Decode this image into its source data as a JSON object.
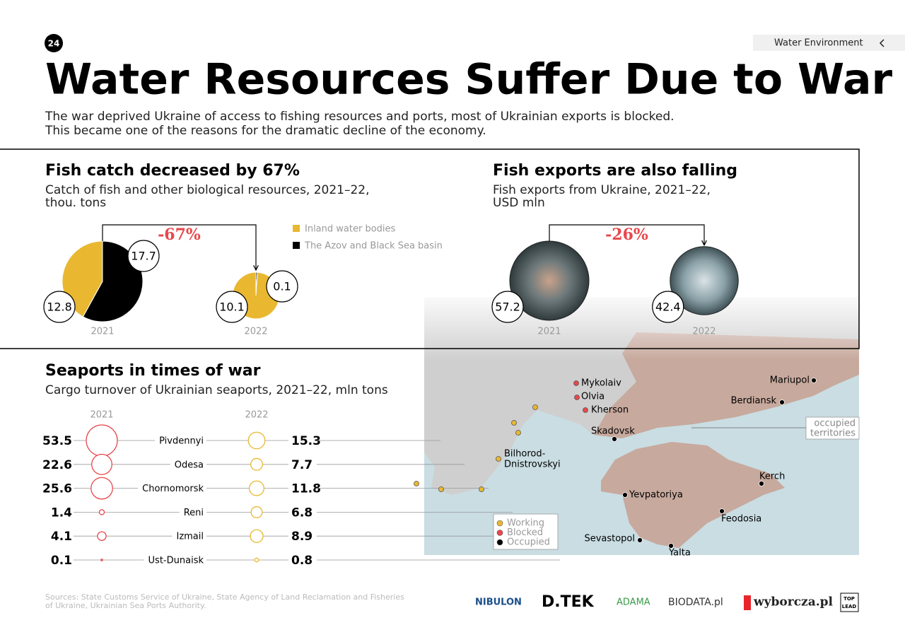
{
  "page_number": "24",
  "section": "Water Environment",
  "title": "Water Resources Suffer Due to War",
  "intro": [
    "The war deprived Ukraine of access to fishing resources and ports, most of Ukrainian exports is blocked.",
    "This became one of the reasons for the dramatic decline of the economy."
  ],
  "chart_data": [
    {
      "type": "pie",
      "title": "Fish catch decreased by 67%",
      "subtitle": [
        "Catch of fish and other biological resources, 2021–22,",
        "thou. tons"
      ],
      "change": {
        "value": -67,
        "label": "-67%"
      },
      "categories": [
        "2021",
        "2022"
      ],
      "series": [
        {
          "name": "Inland water bodies",
          "color": "#e9b830",
          "values": [
            12.8,
            10.1
          ]
        },
        {
          "name": "The Azov and Black Sea basin",
          "color": "#000000",
          "values": [
            17.7,
            0.1
          ]
        }
      ]
    },
    {
      "type": "bubble",
      "title": "Fish exports are also falling",
      "subtitle": [
        "Fish exports from Ukraine, 2021–22,",
        "USD mln"
      ],
      "change": {
        "value": -26,
        "label": "-26%"
      },
      "categories": [
        "2021",
        "2022"
      ],
      "values": [
        57.2,
        42.4
      ]
    },
    {
      "type": "paired-bubble",
      "title": "Seaports in times of war",
      "subtitle": [
        "Cargo turnover of Ukrainian seaports, 2021–22, mln tons"
      ],
      "categories": [
        "Pivdennyi",
        "Odesa",
        "Chornomorsk",
        "Reni",
        "Izmail",
        "Ust-Dunaisk"
      ],
      "series": [
        {
          "name": "2021",
          "color": "#e8474c",
          "values": [
            53.5,
            22.6,
            25.6,
            1.4,
            4.1,
            0.1
          ]
        },
        {
          "name": "2022",
          "color": "#e9b830",
          "values": [
            15.3,
            7.7,
            11.8,
            6.8,
            8.9,
            0.8
          ]
        }
      ]
    }
  ],
  "map": {
    "places": [
      {
        "label": "Mykolaiv",
        "color": "#e8474c"
      },
      {
        "label": "Olvia",
        "color": "#e8474c"
      },
      {
        "label": "Kherson",
        "color": "#e8474c"
      },
      {
        "label": "Skadovsk",
        "color": "#000000"
      },
      {
        "label": "Mariupol",
        "color": "#000000"
      },
      {
        "label": "Berdiansk",
        "color": "#000000"
      },
      {
        "label": "Kerch",
        "color": "#000000"
      },
      {
        "label": "Yevpatoriya",
        "color": "#000000"
      },
      {
        "label": "Feodosia",
        "color": "#000000"
      },
      {
        "label": "Sevastopol",
        "color": "#000000"
      },
      {
        "label": "Yalta",
        "color": "#000000"
      },
      {
        "label": [
          "Bilhorod-",
          "Dnistrovskyi"
        ],
        "color": "#e9b830"
      }
    ],
    "legend": [
      {
        "name": "Working",
        "color": "#e9b830"
      },
      {
        "name": "Blocked",
        "color": "#e8474c"
      },
      {
        "name": "Occupied",
        "color": "#000000"
      }
    ],
    "annotation": [
      "occupied",
      "territories"
    ]
  },
  "sources": [
    "Sources: State Customs Service of Ukraine, State Agency of Land Reclamation and Fisheries",
    "of Ukraine, Ukrainian Sea Ports Authority."
  ],
  "logos": [
    "NIBULON",
    "D.TEK",
    "ADAMA",
    "BIODATA.pl",
    "wyborcza.pl",
    "TOP",
    "LEAD"
  ]
}
